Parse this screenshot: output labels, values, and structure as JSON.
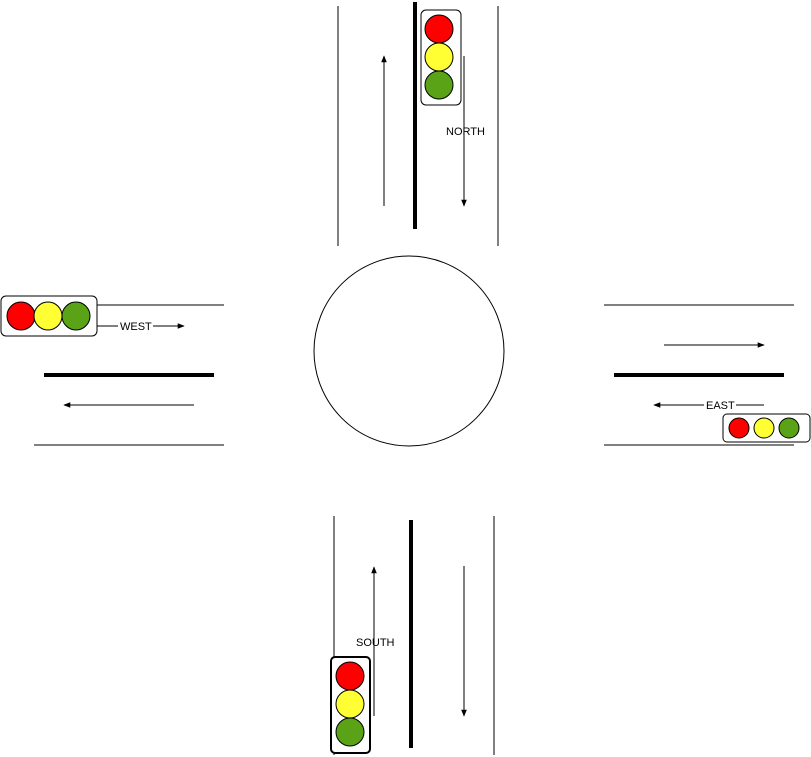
{
  "labels": {
    "north": "NORTH",
    "south": "SOUTH",
    "east": "EAST",
    "west": "WEST"
  },
  "colors": {
    "red": "#ff0000",
    "yellow": "#ffff33",
    "green": "#5aa317",
    "line": "#000000",
    "background": "#ffffff"
  }
}
